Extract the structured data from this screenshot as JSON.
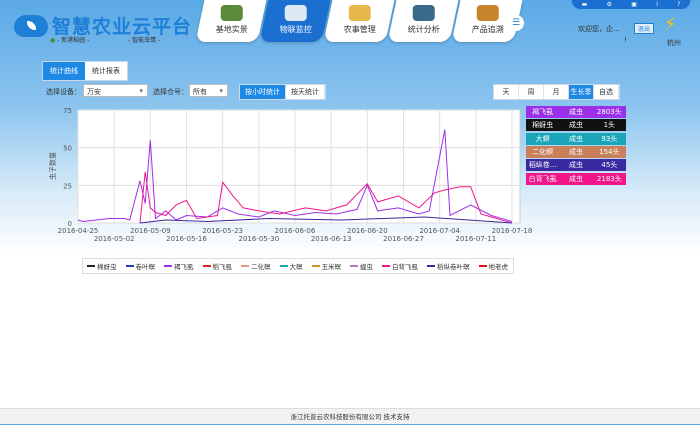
{
  "header": {
    "title": "智慧农业云平台",
    "location": "- 新港稻园 -",
    "mode": "- 智能虫情 -",
    "nav": [
      {
        "label": "基地实景",
        "color": "#5a8a3a"
      },
      {
        "label": "物联监控",
        "color": "#dde8f5",
        "active": true
      },
      {
        "label": "农事管理",
        "color": "#e8b84a"
      },
      {
        "label": "统计分析",
        "color": "#3a6a8a"
      },
      {
        "label": "产品追溯",
        "color": "#c8842a"
      }
    ],
    "toolbar_icons": [
      "message-icon",
      "gear-icon",
      "window-icon",
      "info-icon",
      "help-icon"
    ],
    "welcome": "欢迎您，企...",
    "welcome_mark": "!",
    "logout": "退出",
    "city": "杭州"
  },
  "tabs": [
    {
      "label": "统计曲线",
      "active": true
    },
    {
      "label": "统计报表"
    }
  ],
  "filters": {
    "device_label": "选择设备：",
    "device_value": "万安",
    "trap_label": "选择仓号：",
    "trap_value": "所有",
    "stat_modes": [
      {
        "label": "按小时统计",
        "active": true
      },
      {
        "label": "按天统计"
      }
    ],
    "periods": [
      {
        "label": "天"
      },
      {
        "label": "周"
      },
      {
        "label": "月"
      },
      {
        "label": "生长季",
        "active": true
      },
      {
        "label": "自选"
      }
    ]
  },
  "pest_summary": [
    {
      "name": "褐飞虱",
      "stage": "成虫",
      "count": "2803头",
      "color": "#9b30e8"
    },
    {
      "name": "棉蚜虫",
      "stage": "成虫",
      "count": "1头",
      "color": "#111111"
    },
    {
      "name": "大螟",
      "stage": "成虫",
      "count": "93头",
      "color": "#1aa6b8"
    },
    {
      "name": "二化螟",
      "stage": "成虫",
      "count": "154头",
      "color": "#c9805a"
    },
    {
      "name": "稻纵卷...",
      "stage": "成虫",
      "count": "45头",
      "color": "#3a2aa0"
    },
    {
      "name": "白背飞虱",
      "stage": "成虫",
      "count": "2183头",
      "color": "#f0168a"
    }
  ],
  "chart_data": {
    "type": "line",
    "ylabel": "虫子数量",
    "ylim": [
      0,
      75
    ],
    "yticks": [
      0,
      25,
      50,
      75
    ],
    "xlim": [
      "2016-04-25",
      "2016-07-18"
    ],
    "xticks": [
      "2016-04-25",
      "2016-05-02",
      "2016-05-09",
      "2016-05-16",
      "2016-05-23",
      "2016-05-30",
      "2016-06-06",
      "2016-06-13",
      "2016-06-20",
      "2016-06-27",
      "2016-07-04",
      "2016-07-11",
      "2016-07-18"
    ],
    "grid": true,
    "legend_position": "bottom",
    "legend": [
      {
        "name": "棉蚜虫",
        "color": "#222222"
      },
      {
        "name": "卷叶螟",
        "color": "#2a3ab8"
      },
      {
        "name": "褐飞虱",
        "color": "#9b30e8"
      },
      {
        "name": "稻飞虱",
        "color": "#e02020"
      },
      {
        "name": "二化螟",
        "color": "#e0a080"
      },
      {
        "name": "大螟",
        "color": "#1aa6b8"
      },
      {
        "name": "玉米螟",
        "color": "#d09030"
      },
      {
        "name": "蝗虫",
        "color": "#c070d0"
      },
      {
        "name": "白背飞虱",
        "color": "#f0168a"
      },
      {
        "name": "稻纵卷叶螟",
        "color": "#3a2aa0"
      },
      {
        "name": "地老虎",
        "color": "#e01010"
      }
    ],
    "series": [
      {
        "name": "褐飞虱",
        "color": "#9b30e8",
        "points": [
          [
            "2016-04-25",
            2
          ],
          [
            "2016-04-26",
            1
          ],
          [
            "2016-05-01",
            3
          ],
          [
            "2016-05-04",
            3
          ],
          [
            "2016-05-05",
            2
          ],
          [
            "2016-05-07",
            28
          ],
          [
            "2016-05-08",
            13
          ],
          [
            "2016-05-09",
            55
          ],
          [
            "2016-05-10",
            3
          ],
          [
            "2016-05-12",
            8
          ],
          [
            "2016-05-14",
            2
          ],
          [
            "2016-05-16",
            5
          ],
          [
            "2016-05-20",
            4
          ],
          [
            "2016-05-23",
            10
          ],
          [
            "2016-05-26",
            6
          ],
          [
            "2016-05-30",
            4
          ],
          [
            "2016-06-02",
            8
          ],
          [
            "2016-06-06",
            5
          ],
          [
            "2016-06-10",
            7
          ],
          [
            "2016-06-14",
            6
          ],
          [
            "2016-06-18",
            9
          ],
          [
            "2016-06-20",
            25
          ],
          [
            "2016-06-22",
            8
          ],
          [
            "2016-06-26",
            10
          ],
          [
            "2016-06-30",
            6
          ],
          [
            "2016-07-02",
            8
          ],
          [
            "2016-07-05",
            62
          ],
          [
            "2016-07-06",
            5
          ],
          [
            "2016-07-10",
            12
          ],
          [
            "2016-07-14",
            5
          ],
          [
            "2016-07-18",
            1
          ]
        ]
      },
      {
        "name": "白背飞虱",
        "color": "#f0168a",
        "points": [
          [
            "2016-05-07",
            0
          ],
          [
            "2016-05-08",
            34
          ],
          [
            "2016-05-09",
            10
          ],
          [
            "2016-05-10",
            7
          ],
          [
            "2016-05-12",
            5
          ],
          [
            "2016-05-14",
            12
          ],
          [
            "2016-05-16",
            15
          ],
          [
            "2016-05-18",
            3
          ],
          [
            "2016-05-22",
            5
          ],
          [
            "2016-05-23",
            27
          ],
          [
            "2016-05-25",
            18
          ],
          [
            "2016-05-27",
            10
          ],
          [
            "2016-05-30",
            8
          ],
          [
            "2016-06-03",
            6
          ],
          [
            "2016-06-08",
            10
          ],
          [
            "2016-06-12",
            8
          ],
          [
            "2016-06-16",
            12
          ],
          [
            "2016-06-20",
            26
          ],
          [
            "2016-06-22",
            14
          ],
          [
            "2016-06-26",
            18
          ],
          [
            "2016-06-30",
            10
          ],
          [
            "2016-07-03",
            20
          ],
          [
            "2016-07-05",
            22
          ],
          [
            "2016-07-08",
            24
          ],
          [
            "2016-07-10",
            24
          ],
          [
            "2016-07-12",
            6
          ],
          [
            "2016-07-18",
            0
          ]
        ]
      },
      {
        "name": "稻纵卷叶螟",
        "color": "#3a2aa0",
        "points": [
          [
            "2016-05-07",
            0
          ],
          [
            "2016-05-12",
            2
          ],
          [
            "2016-05-20",
            1
          ],
          [
            "2016-06-01",
            3
          ],
          [
            "2016-06-15",
            2
          ],
          [
            "2016-07-01",
            4
          ],
          [
            "2016-07-18",
            0
          ]
        ]
      }
    ]
  },
  "footer": "浙江托普云农科技股份有限公司 技术支持"
}
